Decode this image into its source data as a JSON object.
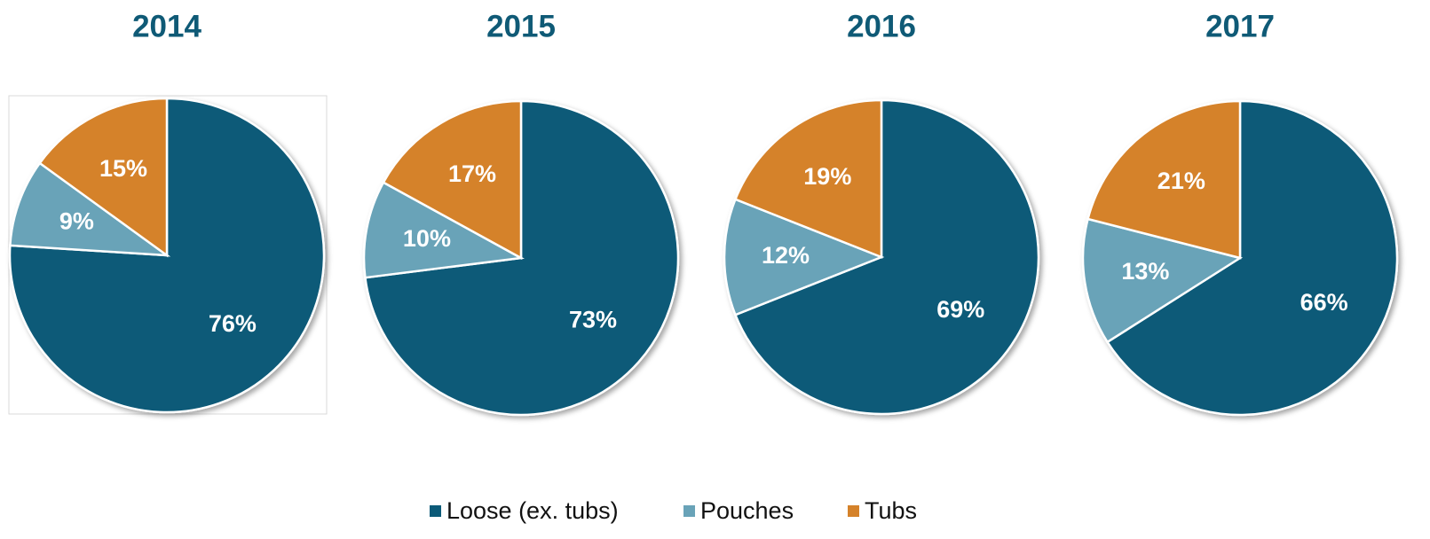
{
  "chart_data": [
    {
      "type": "pie",
      "title": "2014",
      "categories": [
        "Loose (ex. tubs)",
        "Pouches",
        "Tubs"
      ],
      "values": [
        76,
        9,
        15
      ],
      "value_labels": [
        "76%",
        "9%",
        "15%"
      ],
      "colors": [
        "#0b5a78",
        "#69a3b8",
        "#d5822a"
      ],
      "legend": "bottom"
    },
    {
      "type": "pie",
      "title": "2015",
      "categories": [
        "Loose (ex. tubs)",
        "Pouches",
        "Tubs"
      ],
      "values": [
        73,
        10,
        17
      ],
      "value_labels": [
        "73%",
        "10%",
        "17%"
      ],
      "colors": [
        "#0b5a78",
        "#69a3b8",
        "#d5822a"
      ],
      "legend": "bottom"
    },
    {
      "type": "pie",
      "title": "2016",
      "categories": [
        "Loose (ex. tubs)",
        "Pouches",
        "Tubs"
      ],
      "values": [
        69,
        12,
        19
      ],
      "value_labels": [
        "69%",
        "12%",
        "19%"
      ],
      "colors": [
        "#0b5a78",
        "#69a3b8",
        "#d5822a"
      ],
      "legend": "bottom"
    },
    {
      "type": "pie",
      "title": "2017",
      "categories": [
        "Loose (ex. tubs)",
        "Pouches",
        "Tubs"
      ],
      "values": [
        66,
        13,
        21
      ],
      "value_labels": [
        "66%",
        "13%",
        "21%"
      ],
      "colors": [
        "#0b5a78",
        "#69a3b8",
        "#d5822a"
      ],
      "legend": "bottom"
    }
  ]
}
